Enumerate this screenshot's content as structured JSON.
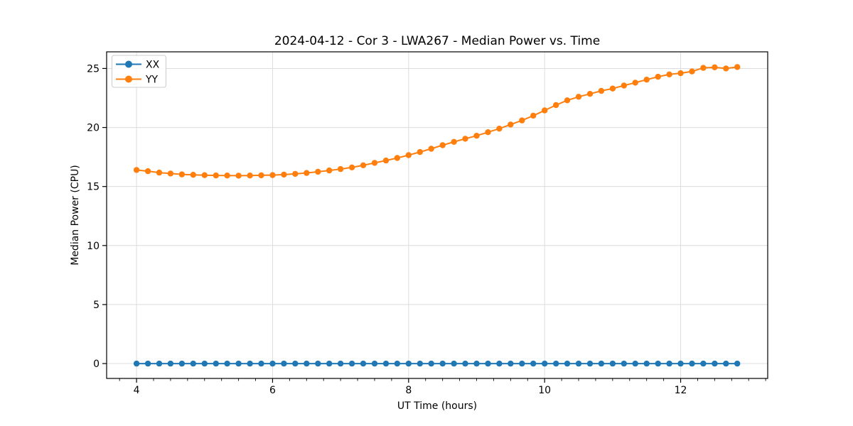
{
  "figure": {
    "background": "#ffffff",
    "spine_color": "#000000",
    "tick_color": "#000000"
  },
  "chart_data": {
    "type": "line",
    "title": "2024-04-12 - Cor 3 - LWA267 - Median Power vs. Time",
    "xlabel": "UT Time (hours)",
    "ylabel": "Median Power (CPU)",
    "xlim": [
      3.56,
      13.28
    ],
    "ylim": [
      -1.26,
      26.41
    ],
    "xticks": [
      4,
      6,
      8,
      10,
      12
    ],
    "yticks": [
      0,
      5,
      10,
      15,
      20,
      25
    ],
    "minor_xtick_step": 0.25,
    "grid": true,
    "grid_color": "#dcdcdc",
    "legend_position": "upper left",
    "marker": "circle",
    "x": [
      4.0,
      4.167,
      4.333,
      4.5,
      4.667,
      4.833,
      5.0,
      5.167,
      5.333,
      5.5,
      5.667,
      5.833,
      6.0,
      6.167,
      6.333,
      6.5,
      6.667,
      6.833,
      7.0,
      7.167,
      7.333,
      7.5,
      7.667,
      7.833,
      8.0,
      8.167,
      8.333,
      8.5,
      8.667,
      8.833,
      9.0,
      9.167,
      9.333,
      9.5,
      9.667,
      9.833,
      10.0,
      10.167,
      10.333,
      10.5,
      10.667,
      10.833,
      11.0,
      11.167,
      11.333,
      11.5,
      11.667,
      11.833,
      12.0,
      12.167,
      12.333,
      12.5,
      12.667,
      12.833
    ],
    "series": [
      {
        "name": "XX",
        "color": "#1f77b4",
        "values": [
          0.0,
          0.0,
          0.0,
          0.0,
          0.0,
          0.0,
          0.0,
          0.0,
          0.0,
          0.0,
          0.0,
          0.0,
          0.0,
          0.0,
          0.0,
          0.0,
          0.0,
          0.0,
          0.0,
          0.0,
          0.0,
          0.0,
          0.0,
          0.0,
          0.0,
          0.0,
          0.0,
          0.0,
          0.0,
          0.0,
          0.0,
          0.0,
          0.0,
          0.0,
          0.0,
          0.0,
          0.0,
          0.0,
          0.0,
          0.0,
          0.0,
          0.0,
          0.0,
          0.0,
          0.0,
          0.0,
          0.0,
          0.0,
          0.0,
          0.0,
          0.0,
          0.0,
          0.0,
          0.0
        ]
      },
      {
        "name": "YY",
        "color": "#ff7f0e",
        "values": [
          16.4,
          16.3,
          16.18,
          16.1,
          16.03,
          15.99,
          15.96,
          15.94,
          15.93,
          15.92,
          15.93,
          15.95,
          15.97,
          16.01,
          16.07,
          16.15,
          16.25,
          16.36,
          16.48,
          16.62,
          16.8,
          17.0,
          17.2,
          17.42,
          17.66,
          17.92,
          18.2,
          18.5,
          18.78,
          19.05,
          19.3,
          19.6,
          19.9,
          20.25,
          20.6,
          21.0,
          21.45,
          21.9,
          22.3,
          22.6,
          22.85,
          23.1,
          23.3,
          23.55,
          23.8,
          24.05,
          24.3,
          24.5,
          24.6,
          24.75,
          25.05,
          25.1,
          25.0,
          25.12
        ]
      }
    ]
  }
}
